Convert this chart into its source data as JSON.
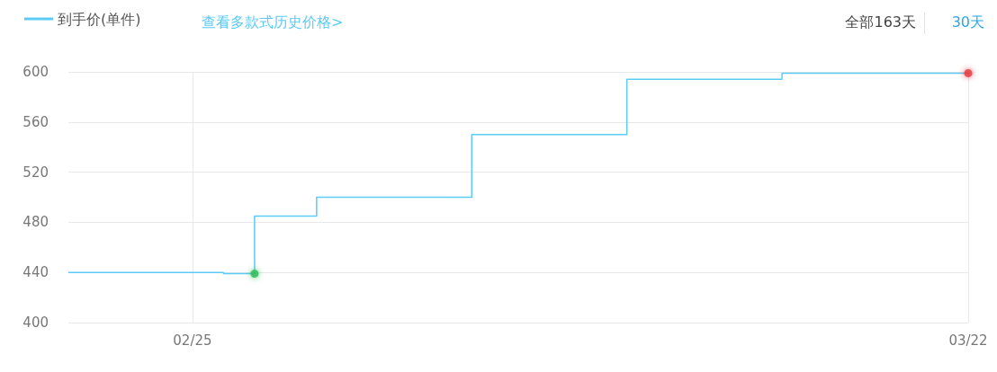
{
  "chart_data": {
    "type": "step",
    "x": [
      "--02-21",
      "--02-26",
      "--02-27",
      "--03-01",
      "--03-06",
      "--03-11",
      "--03-16",
      "--03-22"
    ],
    "series": [
      {
        "name": "到手价(单件)",
        "color": "#5ccbf5",
        "marker": "none",
        "values": [
          440,
          439,
          485,
          500,
          550,
          594,
          599,
          599
        ]
      },
      {
        "type": "scatter",
        "x": [
          "--02-27",
          "--03-22"
        ],
        "values": [
          439,
          599
        ],
        "colors": [
          "#2dbb55",
          "#e8343c"
        ]
      }
    ],
    "xlim": [
      "--02-21",
      "--03-22"
    ],
    "xticks": [
      {
        "value": "--02-25",
        "label": "02/25"
      },
      {
        "value": "--03-22",
        "label": "03/22"
      }
    ],
    "ylim": [
      400,
      600
    ],
    "yticks": [
      400,
      440,
      480,
      520,
      560,
      600
    ],
    "annotations": [
      "查看多款式历史价格>",
      "全部163天",
      "30天"
    ],
    "grid": true,
    "legend": "top left"
  }
}
